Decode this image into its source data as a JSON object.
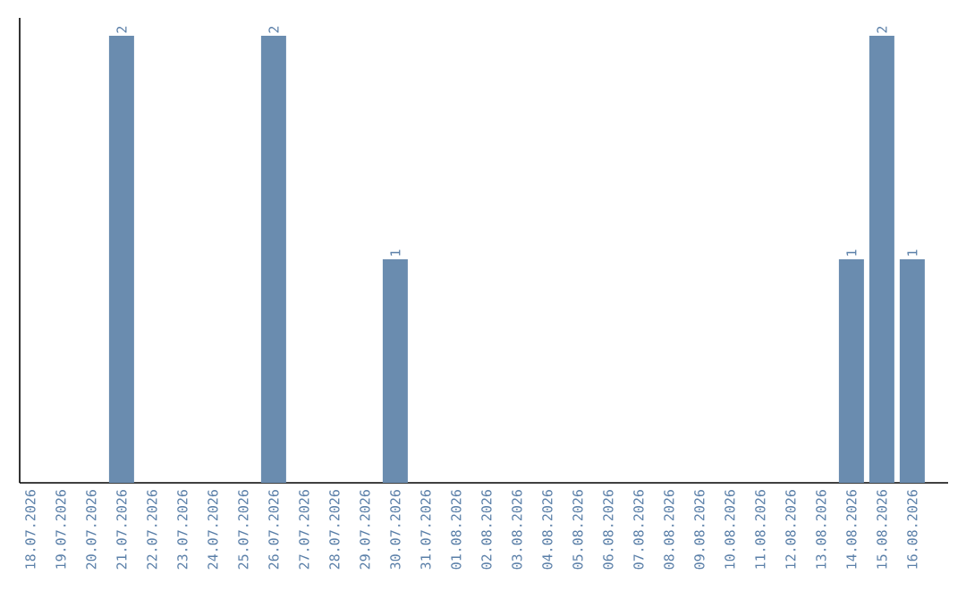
{
  "chart_data": {
    "type": "bar",
    "categories": [
      "18.07.2026",
      "19.07.2026",
      "20.07.2026",
      "21.07.2026",
      "22.07.2026",
      "23.07.2026",
      "24.07.2026",
      "25.07.2026",
      "26.07.2026",
      "27.07.2026",
      "28.07.2026",
      "29.07.2026",
      "30.07.2026",
      "31.07.2026",
      "01.08.2026",
      "02.08.2026",
      "03.08.2026",
      "04.08.2026",
      "05.08.2026",
      "06.08.2026",
      "07.08.2026",
      "08.08.2026",
      "09.08.2026",
      "10.08.2026",
      "11.08.2026",
      "12.08.2026",
      "13.08.2026",
      "14.08.2026",
      "15.08.2026",
      "16.08.2026"
    ],
    "values": [
      0,
      0,
      0,
      2,
      0,
      0,
      0,
      0,
      2,
      0,
      0,
      0,
      1,
      0,
      0,
      0,
      0,
      0,
      0,
      0,
      0,
      0,
      0,
      0,
      0,
      0,
      0,
      1,
      2,
      1
    ],
    "value_labels": [
      null,
      null,
      null,
      "2",
      null,
      null,
      null,
      null,
      "2",
      null,
      null,
      null,
      "1",
      null,
      null,
      null,
      null,
      null,
      null,
      null,
      null,
      null,
      null,
      null,
      null,
      null,
      null,
      "1",
      "2",
      "1"
    ],
    "color": "#6a8caf",
    "grid": false
  }
}
